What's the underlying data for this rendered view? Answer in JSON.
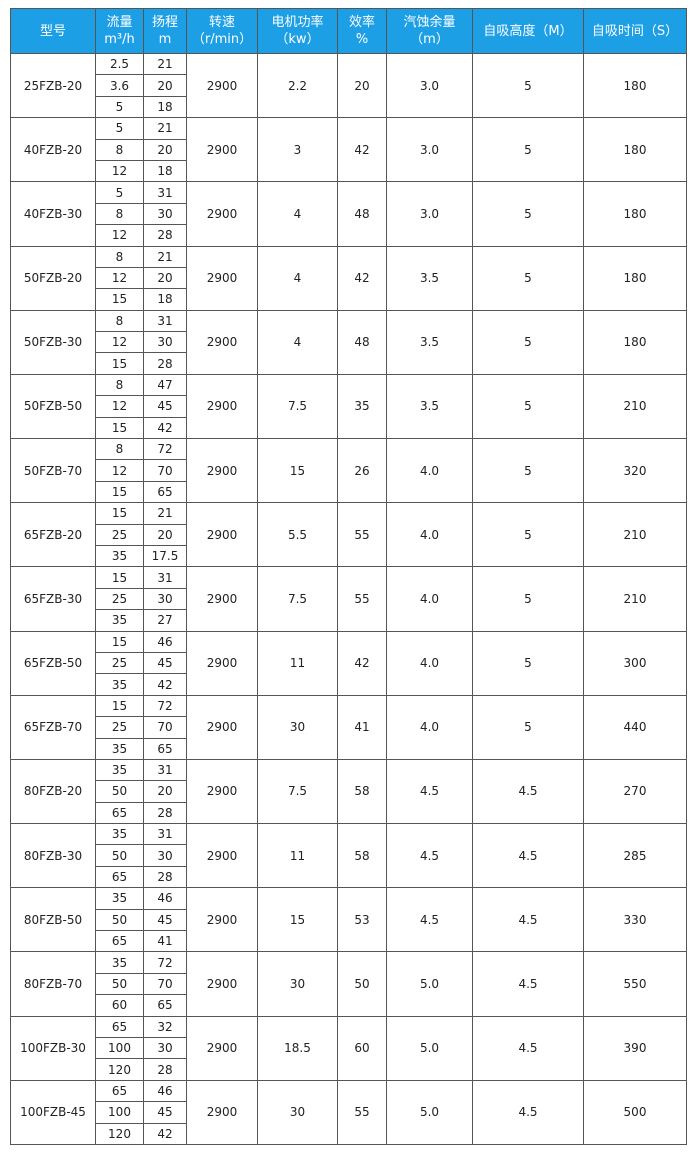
{
  "header": [
    [
      "型号"
    ],
    [
      "流量",
      "m³/h"
    ],
    [
      "扬程",
      "m"
    ],
    [
      "转速",
      "（r/min）"
    ],
    [
      "电机功率",
      "（kw）"
    ],
    [
      "效率",
      "%"
    ],
    [
      "汽蚀余量",
      "（m）"
    ],
    [
      "自吸高度（M）"
    ],
    [
      "自吸时间（S）"
    ]
  ],
  "rows": [
    {
      "model": "25FZB-20",
      "flow": [
        "2.5",
        "3.6",
        "5"
      ],
      "head": [
        "21",
        "20",
        "18"
      ],
      "speed": "2900",
      "power": "2.2",
      "efficiency": "20",
      "npsh": "3.0",
      "suction_height": "5",
      "suction_time": "180"
    },
    {
      "model": "40FZB-20",
      "flow": [
        "5",
        "8",
        "12"
      ],
      "head": [
        "21",
        "20",
        "18"
      ],
      "speed": "2900",
      "power": "3",
      "efficiency": "42",
      "npsh": "3.0",
      "suction_height": "5",
      "suction_time": "180"
    },
    {
      "model": "40FZB-30",
      "flow": [
        "5",
        "8",
        "12"
      ],
      "head": [
        "31",
        "30",
        "28"
      ],
      "speed": "2900",
      "power": "4",
      "efficiency": "48",
      "npsh": "3.0",
      "suction_height": "5",
      "suction_time": "180"
    },
    {
      "model": "50FZB-20",
      "flow": [
        "8",
        "12",
        "15"
      ],
      "head": [
        "21",
        "20",
        "18"
      ],
      "speed": "2900",
      "power": "4",
      "efficiency": "42",
      "npsh": "3.5",
      "suction_height": "5",
      "suction_time": "180"
    },
    {
      "model": "50FZB-30",
      "flow": [
        "8",
        "12",
        "15"
      ],
      "head": [
        "31",
        "30",
        "28"
      ],
      "speed": "2900",
      "power": "4",
      "efficiency": "48",
      "npsh": "3.5",
      "suction_height": "5",
      "suction_time": "180"
    },
    {
      "model": "50FZB-50",
      "flow": [
        "8",
        "12",
        "15"
      ],
      "head": [
        "47",
        "45",
        "42"
      ],
      "speed": "2900",
      "power": "7.5",
      "efficiency": "35",
      "npsh": "3.5",
      "suction_height": "5",
      "suction_time": "210"
    },
    {
      "model": "50FZB-70",
      "flow": [
        "8",
        "12",
        "15"
      ],
      "head": [
        "72",
        "70",
        "65"
      ],
      "speed": "2900",
      "power": "15",
      "efficiency": "26",
      "npsh": "4.0",
      "suction_height": "5",
      "suction_time": "320"
    },
    {
      "model": "65FZB-20",
      "flow": [
        "15",
        "25",
        "35"
      ],
      "head": [
        "21",
        "20",
        "17.5"
      ],
      "speed": "2900",
      "power": "5.5",
      "efficiency": "55",
      "npsh": "4.0",
      "suction_height": "5",
      "suction_time": "210"
    },
    {
      "model": "65FZB-30",
      "flow": [
        "15",
        "25",
        "35"
      ],
      "head": [
        "31",
        "30",
        "27"
      ],
      "speed": "2900",
      "power": "7.5",
      "efficiency": "55",
      "npsh": "4.0",
      "suction_height": "5",
      "suction_time": "210"
    },
    {
      "model": "65FZB-50",
      "flow": [
        "15",
        "25",
        "35"
      ],
      "head": [
        "46",
        "45",
        "42"
      ],
      "speed": "2900",
      "power": "11",
      "efficiency": "42",
      "npsh": "4.0",
      "suction_height": "5",
      "suction_time": "300"
    },
    {
      "model": "65FZB-70",
      "flow": [
        "15",
        "25",
        "35"
      ],
      "head": [
        "72",
        "70",
        "65"
      ],
      "speed": "2900",
      "power": "30",
      "efficiency": "41",
      "npsh": "4.0",
      "suction_height": "5",
      "suction_time": "440"
    },
    {
      "model": "80FZB-20",
      "flow": [
        "35",
        "50",
        "65"
      ],
      "head": [
        "31",
        "20",
        "28"
      ],
      "speed": "2900",
      "power": "7.5",
      "efficiency": "58",
      "npsh": "4.5",
      "suction_height": "4.5",
      "suction_time": "270"
    },
    {
      "model": "80FZB-30",
      "flow": [
        "35",
        "50",
        "65"
      ],
      "head": [
        "31",
        "30",
        "28"
      ],
      "speed": "2900",
      "power": "11",
      "efficiency": "58",
      "npsh": "4.5",
      "suction_height": "4.5",
      "suction_time": "285"
    },
    {
      "model": "80FZB-50",
      "flow": [
        "35",
        "50",
        "65"
      ],
      "head": [
        "46",
        "45",
        "41"
      ],
      "speed": "2900",
      "power": "15",
      "efficiency": "53",
      "npsh": "4.5",
      "suction_height": "4.5",
      "suction_time": "330"
    },
    {
      "model": "80FZB-70",
      "flow": [
        "35",
        "50",
        "60"
      ],
      "head": [
        "72",
        "70",
        "65"
      ],
      "speed": "2900",
      "power": "30",
      "efficiency": "50",
      "npsh": "5.0",
      "suction_height": "4.5",
      "suction_time": "550"
    },
    {
      "model": "100FZB-30",
      "flow": [
        "65",
        "100",
        "120"
      ],
      "head": [
        "32",
        "30",
        "28"
      ],
      "speed": "2900",
      "power": "18.5",
      "efficiency": "60",
      "npsh": "5.0",
      "suction_height": "4.5",
      "suction_time": "390"
    },
    {
      "model": "100FZB-45",
      "flow": [
        "65",
        "100",
        "120"
      ],
      "head": [
        "46",
        "45",
        "42"
      ],
      "speed": "2900",
      "power": "30",
      "efficiency": "55",
      "npsh": "5.0",
      "suction_height": "4.5",
      "suction_time": "500"
    }
  ]
}
